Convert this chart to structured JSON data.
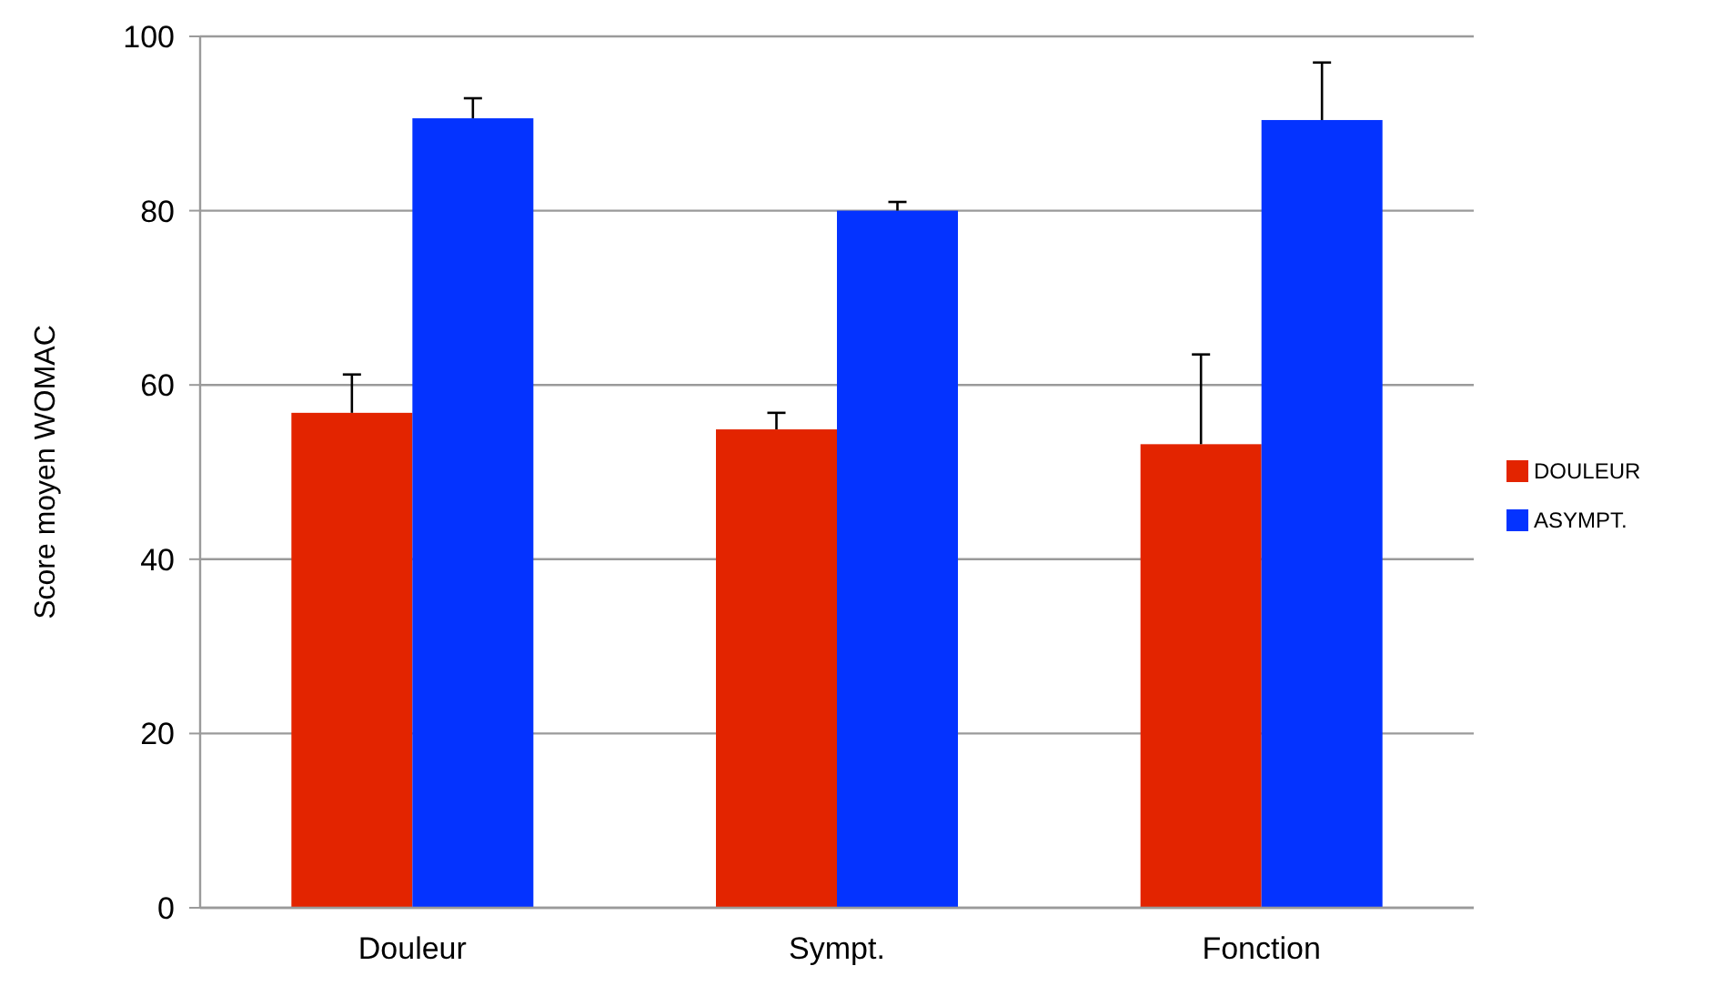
{
  "chart_data": {
    "type": "bar",
    "ylabel": "Score moyen WOMAC",
    "categories": [
      "Douleur",
      "Sympt.",
      "Fonction"
    ],
    "series": [
      {
        "name": "DOULEUR",
        "color": "#e32400",
        "values": [
          56.8,
          54.9,
          53.2
        ],
        "errors": [
          [
            56.8,
            61.2
          ],
          [
            54.9,
            56.8
          ],
          [
            53.2,
            63.5
          ]
        ]
      },
      {
        "name": "ASYMPT.",
        "color": "#0433ff",
        "values": [
          90.6,
          80,
          90.4
        ],
        "errors": [
          [
            90.6,
            92.9
          ],
          [
            80,
            81
          ],
          [
            90.4,
            97
          ]
        ]
      }
    ],
    "ylim": [
      0,
      100
    ],
    "yticks": [
      0,
      20,
      40,
      60,
      80,
      100
    ],
    "grid": "y",
    "legend": "right"
  }
}
